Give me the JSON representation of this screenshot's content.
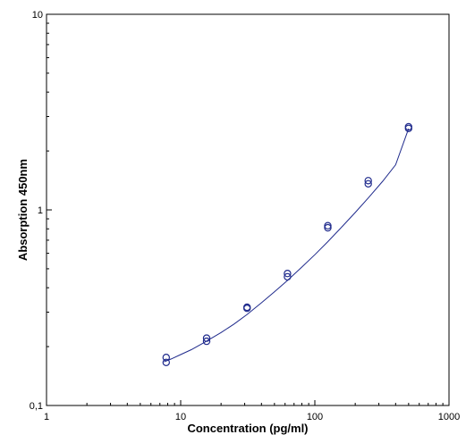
{
  "chart_data": {
    "type": "scatter",
    "title": "",
    "xlabel": "Concentration (pg/ml)",
    "ylabel": "Absorption 450nm",
    "x_scale": "log",
    "y_scale": "log",
    "xlim": [
      1,
      1000
    ],
    "ylim": [
      0.1,
      10
    ],
    "x_ticks": [
      1,
      10,
      100,
      1000
    ],
    "x_tick_labels": [
      "1",
      "10",
      "100",
      "1000"
    ],
    "y_ticks": [
      0.1,
      1,
      10
    ],
    "y_tick_labels": [
      "0,1",
      "1",
      "10"
    ],
    "grid": false,
    "legend": "none",
    "colors": {
      "points": "#1f2a8c",
      "curve": "#1f2a8c",
      "axes": "#000000"
    },
    "series": [
      {
        "type": "scatter",
        "x": [
          7.8,
          7.8,
          15.6,
          15.6,
          31.25,
          31.25,
          62.5,
          62.5,
          125,
          125,
          250,
          250,
          500,
          500
        ],
        "y": [
          0.176,
          0.166,
          0.221,
          0.213,
          0.318,
          0.314,
          0.473,
          0.455,
          0.83,
          0.81,
          1.41,
          1.36,
          2.66,
          2.61
        ]
      },
      {
        "type": "line",
        "x": [
          7.5,
          8.5,
          10,
          12,
          15,
          20,
          25,
          31.25,
          40,
          50,
          62.5,
          80,
          100,
          125,
          160,
          200,
          250,
          320,
          400,
          500
        ],
        "y": [
          0.167,
          0.173,
          0.182,
          0.193,
          0.21,
          0.236,
          0.261,
          0.292,
          0.335,
          0.381,
          0.436,
          0.51,
          0.59,
          0.688,
          0.822,
          0.97,
          1.15,
          1.4,
          1.7,
          2.6
        ]
      }
    ]
  }
}
